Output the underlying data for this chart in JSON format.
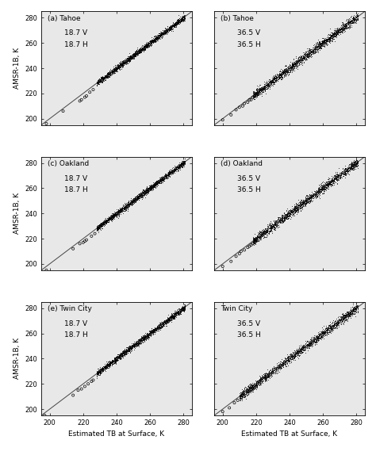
{
  "subplots": [
    {
      "label": "(a) Tahoe",
      "freq1": "18.7 V",
      "freq2": "18.7 H",
      "panel": "left",
      "row": 0,
      "dense_xmin": 228,
      "dense_xmax": 281,
      "dense_n": 2000,
      "dense_noise": 1.2,
      "sparse_x": [
        198,
        208,
        218,
        219,
        221,
        222,
        224,
        226
      ],
      "sparse_y": [
        196,
        206,
        214,
        215,
        217,
        218,
        221,
        223
      ]
    },
    {
      "label": "(b) Tahoe",
      "freq1": "36.5 V",
      "freq2": "36.5 H",
      "panel": "right",
      "row": 0,
      "dense_xmin": 218,
      "dense_xmax": 281,
      "dense_n": 2000,
      "dense_noise": 1.8,
      "sparse_x": [
        200,
        205,
        208,
        210,
        212,
        213,
        215,
        216,
        217,
        218,
        219,
        220,
        221
      ],
      "sparse_y": [
        199,
        203,
        207,
        209,
        210,
        212,
        213,
        215,
        215,
        217,
        218,
        219,
        220
      ]
    },
    {
      "label": "(c) Oakland",
      "freq1": "18.7 V",
      "freq2": "18.7 H",
      "panel": "left",
      "row": 1,
      "dense_xmin": 228,
      "dense_xmax": 281,
      "dense_n": 2000,
      "dense_noise": 1.2,
      "sparse_x": [
        198,
        214,
        218,
        220,
        221,
        222,
        225,
        227
      ],
      "sparse_y": [
        195,
        212,
        216,
        217,
        218,
        219,
        222,
        224
      ]
    },
    {
      "label": "(d) Oakland",
      "freq1": "36.5 V",
      "freq2": "36.5 H",
      "panel": "right",
      "row": 1,
      "dense_xmin": 218,
      "dense_xmax": 281,
      "dense_n": 2000,
      "dense_noise": 1.8,
      "sparse_x": [
        200,
        205,
        208,
        210,
        211,
        213,
        215,
        216,
        217,
        218,
        219,
        220
      ],
      "sparse_y": [
        198,
        202,
        206,
        208,
        210,
        211,
        213,
        214,
        215,
        216,
        217,
        218
      ]
    },
    {
      "label": "(e) Twin City",
      "freq1": "18.7 V",
      "freq2": "18.7 H",
      "panel": "left",
      "row": 2,
      "dense_xmin": 228,
      "dense_xmax": 281,
      "dense_n": 2000,
      "dense_noise": 1.2,
      "sparse_x": [
        197,
        214,
        217,
        219,
        221,
        223,
        225,
        226
      ],
      "sparse_y": [
        195,
        211,
        215,
        216,
        218,
        220,
        222,
        223
      ]
    },
    {
      "label": "Twin City",
      "freq1": "36.5 V",
      "freq2": "36.5 H",
      "panel": "right",
      "row": 2,
      "dense_xmin": 210,
      "dense_xmax": 281,
      "dense_n": 2000,
      "dense_noise": 1.8,
      "sparse_x": [
        200,
        204,
        207,
        209,
        211,
        213,
        215,
        216,
        217,
        218,
        219,
        220
      ],
      "sparse_y": [
        198,
        201,
        205,
        207,
        209,
        210,
        212,
        214,
        215,
        216,
        217,
        218
      ]
    }
  ],
  "xlim": [
    195,
    285
  ],
  "ylim": [
    195,
    285
  ],
  "xticks": [
    200,
    220,
    240,
    260,
    280
  ],
  "yticks": [
    200,
    220,
    240,
    260,
    280
  ],
  "xlabel": "Estimated TB at Surface, K",
  "ylabel": "AMSR-1B, K",
  "background_color": "#e8e8e8",
  "line_color": "#444444",
  "title_fontsize": 6.5,
  "label_fontsize": 6.5,
  "tick_fontsize": 6,
  "fig_width": 4.74,
  "fig_height": 5.79,
  "dpi": 100
}
